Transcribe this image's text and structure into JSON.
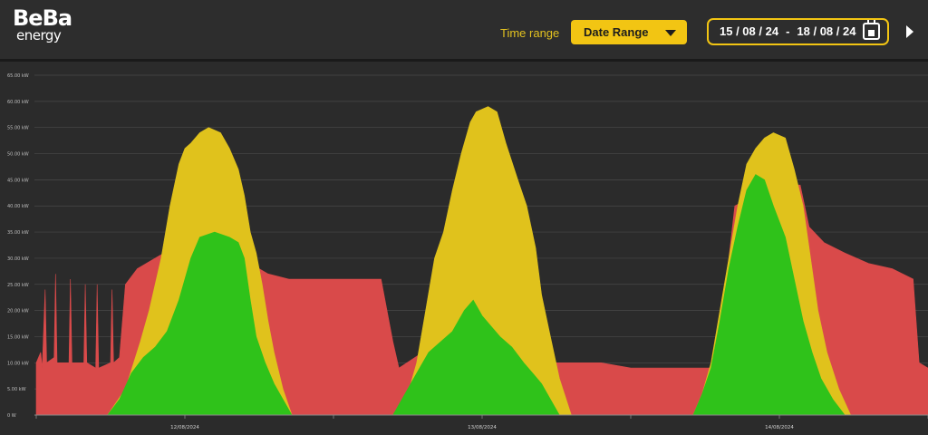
{
  "header": {
    "logo_line1": "BeBa",
    "logo_line2": "energy",
    "time_range_label": "Time range",
    "time_range_value": "Date Range",
    "date_from": "15 / 08 / 24",
    "date_sep": "-",
    "date_to": "18 / 08 / 24",
    "accent_color": "#f2c513"
  },
  "chart_data": {
    "type": "area",
    "x_ticks": [
      "12/08/2024",
      "13/08/2024",
      "14/08/2024"
    ],
    "y_ticks": [
      "0 W",
      "5.00 kW",
      "10.00 kW",
      "15.00 kW",
      "20.00 kW",
      "25.00 kW",
      "30.00 kW",
      "35.00 kW",
      "40.00 kW",
      "45.00 kW",
      "50.00 kW",
      "55.00 kW",
      "60.00 kW",
      "65.00 kW"
    ],
    "ylim": [
      0,
      65
    ],
    "x_range": [
      0,
      3
    ],
    "grid": true,
    "series": [
      {
        "color": "#d94a4a",
        "points": [
          [
            0.0,
            10
          ],
          [
            0.015,
            12
          ],
          [
            0.02,
            9
          ],
          [
            0.03,
            24
          ],
          [
            0.035,
            10
          ],
          [
            0.06,
            11
          ],
          [
            0.065,
            27
          ],
          [
            0.07,
            10
          ],
          [
            0.11,
            10
          ],
          [
            0.115,
            26
          ],
          [
            0.12,
            10
          ],
          [
            0.16,
            10
          ],
          [
            0.165,
            25
          ],
          [
            0.17,
            10
          ],
          [
            0.2,
            9
          ],
          [
            0.205,
            25
          ],
          [
            0.21,
            9
          ],
          [
            0.25,
            10
          ],
          [
            0.255,
            24
          ],
          [
            0.26,
            10
          ],
          [
            0.28,
            11
          ],
          [
            0.3,
            25
          ],
          [
            0.34,
            28
          ],
          [
            0.4,
            30
          ],
          [
            0.46,
            32
          ],
          [
            0.52,
            34
          ],
          [
            0.62,
            37
          ],
          [
            0.67,
            31
          ],
          [
            0.72,
            29
          ],
          [
            0.78,
            27
          ],
          [
            0.85,
            26
          ],
          [
            0.95,
            26
          ],
          [
            1.05,
            26
          ],
          [
            1.12,
            26
          ],
          [
            1.16,
            26
          ],
          [
            1.2,
            14
          ],
          [
            1.22,
            9
          ],
          [
            1.3,
            12
          ],
          [
            1.4,
            12
          ],
          [
            1.5,
            12
          ],
          [
            1.6,
            13
          ],
          [
            1.68,
            12
          ],
          [
            1.75,
            10
          ],
          [
            1.8,
            10
          ],
          [
            1.9,
            10
          ],
          [
            2.0,
            9
          ],
          [
            2.1,
            9
          ],
          [
            2.2,
            9
          ],
          [
            2.27,
            9
          ],
          [
            2.3,
            15
          ],
          [
            2.35,
            40
          ],
          [
            2.42,
            42
          ],
          [
            2.5,
            44
          ],
          [
            2.57,
            44
          ],
          [
            2.6,
            36
          ],
          [
            2.65,
            33
          ],
          [
            2.72,
            31
          ],
          [
            2.8,
            29
          ],
          [
            2.88,
            28
          ],
          [
            2.95,
            26
          ],
          [
            2.97,
            10
          ],
          [
            3.0,
            9
          ]
        ]
      },
      {
        "color": "#e0c21c",
        "points": [
          [
            0.0,
            0
          ],
          [
            0.24,
            0
          ],
          [
            0.3,
            5
          ],
          [
            0.35,
            14
          ],
          [
            0.38,
            20
          ],
          [
            0.42,
            30
          ],
          [
            0.45,
            40
          ],
          [
            0.48,
            48
          ],
          [
            0.5,
            51
          ],
          [
            0.52,
            52
          ],
          [
            0.55,
            54
          ],
          [
            0.58,
            55
          ],
          [
            0.62,
            54
          ],
          [
            0.65,
            51
          ],
          [
            0.68,
            47
          ],
          [
            0.7,
            42
          ],
          [
            0.72,
            35
          ],
          [
            0.74,
            31
          ],
          [
            0.76,
            25
          ],
          [
            0.78,
            18
          ],
          [
            0.8,
            12
          ],
          [
            0.83,
            5
          ],
          [
            0.86,
            0
          ],
          [
            1.2,
            0
          ],
          [
            1.25,
            4
          ],
          [
            1.28,
            10
          ],
          [
            1.31,
            20
          ],
          [
            1.34,
            30
          ],
          [
            1.37,
            35
          ],
          [
            1.4,
            43
          ],
          [
            1.43,
            50
          ],
          [
            1.46,
            56
          ],
          [
            1.48,
            58
          ],
          [
            1.52,
            59
          ],
          [
            1.55,
            58
          ],
          [
            1.58,
            52
          ],
          [
            1.62,
            45
          ],
          [
            1.65,
            40
          ],
          [
            1.68,
            32
          ],
          [
            1.7,
            23
          ],
          [
            1.73,
            15
          ],
          [
            1.76,
            7
          ],
          [
            1.8,
            0
          ],
          [
            2.21,
            0
          ],
          [
            2.24,
            4
          ],
          [
            2.27,
            10
          ],
          [
            2.3,
            20
          ],
          [
            2.33,
            30
          ],
          [
            2.36,
            40
          ],
          [
            2.39,
            48
          ],
          [
            2.42,
            51
          ],
          [
            2.45,
            53
          ],
          [
            2.48,
            54
          ],
          [
            2.52,
            53
          ],
          [
            2.55,
            47
          ],
          [
            2.58,
            40
          ],
          [
            2.6,
            32
          ],
          [
            2.63,
            20
          ],
          [
            2.66,
            12
          ],
          [
            2.7,
            5
          ],
          [
            2.74,
            0
          ],
          [
            3.0,
            0
          ]
        ]
      },
      {
        "color": "#2fc21a",
        "points": [
          [
            0.0,
            0
          ],
          [
            0.24,
            0
          ],
          [
            0.28,
            3
          ],
          [
            0.32,
            8
          ],
          [
            0.36,
            11
          ],
          [
            0.4,
            13
          ],
          [
            0.44,
            16
          ],
          [
            0.48,
            22
          ],
          [
            0.52,
            30
          ],
          [
            0.55,
            34
          ],
          [
            0.6,
            35
          ],
          [
            0.65,
            34
          ],
          [
            0.68,
            33
          ],
          [
            0.7,
            30
          ],
          [
            0.72,
            22
          ],
          [
            0.74,
            15
          ],
          [
            0.77,
            10
          ],
          [
            0.8,
            6
          ],
          [
            0.83,
            3
          ],
          [
            0.86,
            0
          ],
          [
            1.2,
            0
          ],
          [
            1.24,
            4
          ],
          [
            1.28,
            8
          ],
          [
            1.32,
            12
          ],
          [
            1.36,
            14
          ],
          [
            1.4,
            16
          ],
          [
            1.44,
            20
          ],
          [
            1.47,
            22
          ],
          [
            1.5,
            19
          ],
          [
            1.53,
            17
          ],
          [
            1.56,
            15
          ],
          [
            1.6,
            13
          ],
          [
            1.64,
            10
          ],
          [
            1.67,
            8
          ],
          [
            1.7,
            6
          ],
          [
            1.73,
            3
          ],
          [
            1.76,
            0
          ],
          [
            2.21,
            0
          ],
          [
            2.24,
            4
          ],
          [
            2.27,
            9
          ],
          [
            2.3,
            18
          ],
          [
            2.33,
            28
          ],
          [
            2.36,
            36
          ],
          [
            2.39,
            43
          ],
          [
            2.42,
            46
          ],
          [
            2.45,
            45
          ],
          [
            2.48,
            40
          ],
          [
            2.52,
            34
          ],
          [
            2.55,
            26
          ],
          [
            2.58,
            18
          ],
          [
            2.61,
            12
          ],
          [
            2.64,
            7
          ],
          [
            2.68,
            3
          ],
          [
            2.72,
            0
          ],
          [
            3.0,
            0
          ]
        ]
      }
    ]
  }
}
